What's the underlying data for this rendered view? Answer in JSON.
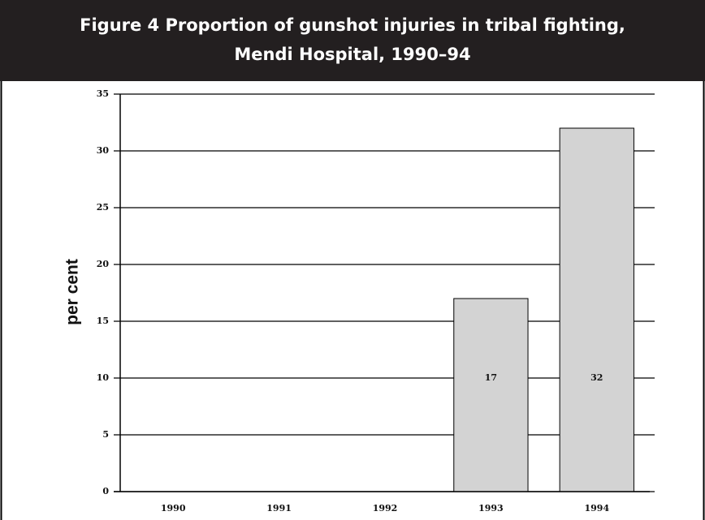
{
  "chart_data": {
    "type": "bar",
    "title": [
      "Figure 4 Proportion of gunshot injuries in tribal fighting,",
      "Mendi Hospital, 1990–94"
    ],
    "y_label": "per cent",
    "categories": [
      "1990",
      "1991",
      "1992",
      "1993",
      "1994"
    ],
    "values": [
      0,
      0,
      0,
      17,
      32
    ],
    "color": "#d3d3d3",
    "ylim": [
      0,
      35
    ],
    "yticks": [
      0,
      5,
      10,
      15,
      20,
      25,
      30,
      35
    ],
    "grid": true
  }
}
